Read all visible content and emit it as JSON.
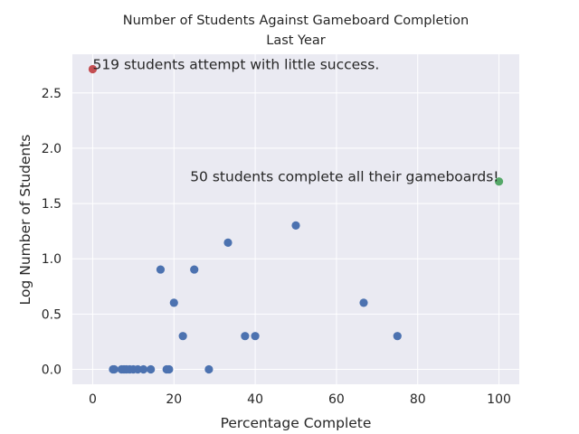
{
  "chart_data": {
    "type": "scatter",
    "title": "Number of Students Against Gameboard Completion",
    "subtitle": "Last Year",
    "xlabel": "Percentage Complete",
    "ylabel": "Log Number of Students",
    "xlim": [
      -5,
      105
    ],
    "ylim": [
      -0.135,
      2.85
    ],
    "x_ticks": [
      0,
      20,
      40,
      60,
      80,
      100
    ],
    "y_ticks": [
      0.0,
      0.5,
      1.0,
      1.5,
      2.0,
      2.5
    ],
    "x_tick_labels": [
      "0",
      "20",
      "40",
      "60",
      "80",
      "100"
    ],
    "y_tick_labels": [
      "0.0",
      "0.5",
      "1.0",
      "1.5",
      "2.0",
      "2.5"
    ],
    "grid": true,
    "series": [
      {
        "color": "#4c72b0",
        "points": [
          {
            "x": 5,
            "y": 0.0
          },
          {
            "x": 5.3,
            "y": 0.0
          },
          {
            "x": 7.1,
            "y": 0.0
          },
          {
            "x": 7.7,
            "y": 0.0
          },
          {
            "x": 8.3,
            "y": 0.0
          },
          {
            "x": 9.1,
            "y": 0.0
          },
          {
            "x": 10,
            "y": 0.0
          },
          {
            "x": 11.1,
            "y": 0.0
          },
          {
            "x": 12.5,
            "y": 0.0
          },
          {
            "x": 14.3,
            "y": 0.0
          },
          {
            "x": 16.7,
            "y": 0.903
          },
          {
            "x": 18.2,
            "y": 0.0
          },
          {
            "x": 18.8,
            "y": 0.0
          },
          {
            "x": 20,
            "y": 0.602
          },
          {
            "x": 22.2,
            "y": 0.301
          },
          {
            "x": 25,
            "y": 0.903
          },
          {
            "x": 28.6,
            "y": 0.0
          },
          {
            "x": 33.3,
            "y": 1.146
          },
          {
            "x": 37.5,
            "y": 0.301
          },
          {
            "x": 40,
            "y": 0.301
          },
          {
            "x": 50,
            "y": 1.301
          },
          {
            "x": 66.7,
            "y": 0.602
          },
          {
            "x": 75,
            "y": 0.301
          }
        ]
      },
      {
        "color": "#c44e52",
        "points": [
          {
            "x": 0,
            "y": 2.715
          }
        ]
      },
      {
        "color": "#55a868",
        "points": [
          {
            "x": 100,
            "y": 1.699
          }
        ]
      }
    ],
    "annotations": [
      {
        "text": "519 students attempt with little success.",
        "x": 0,
        "y": 2.715,
        "align": "start"
      },
      {
        "text": "50 students complete all their gameboards!",
        "x": 100,
        "y": 1.699,
        "align": "end"
      }
    ]
  }
}
